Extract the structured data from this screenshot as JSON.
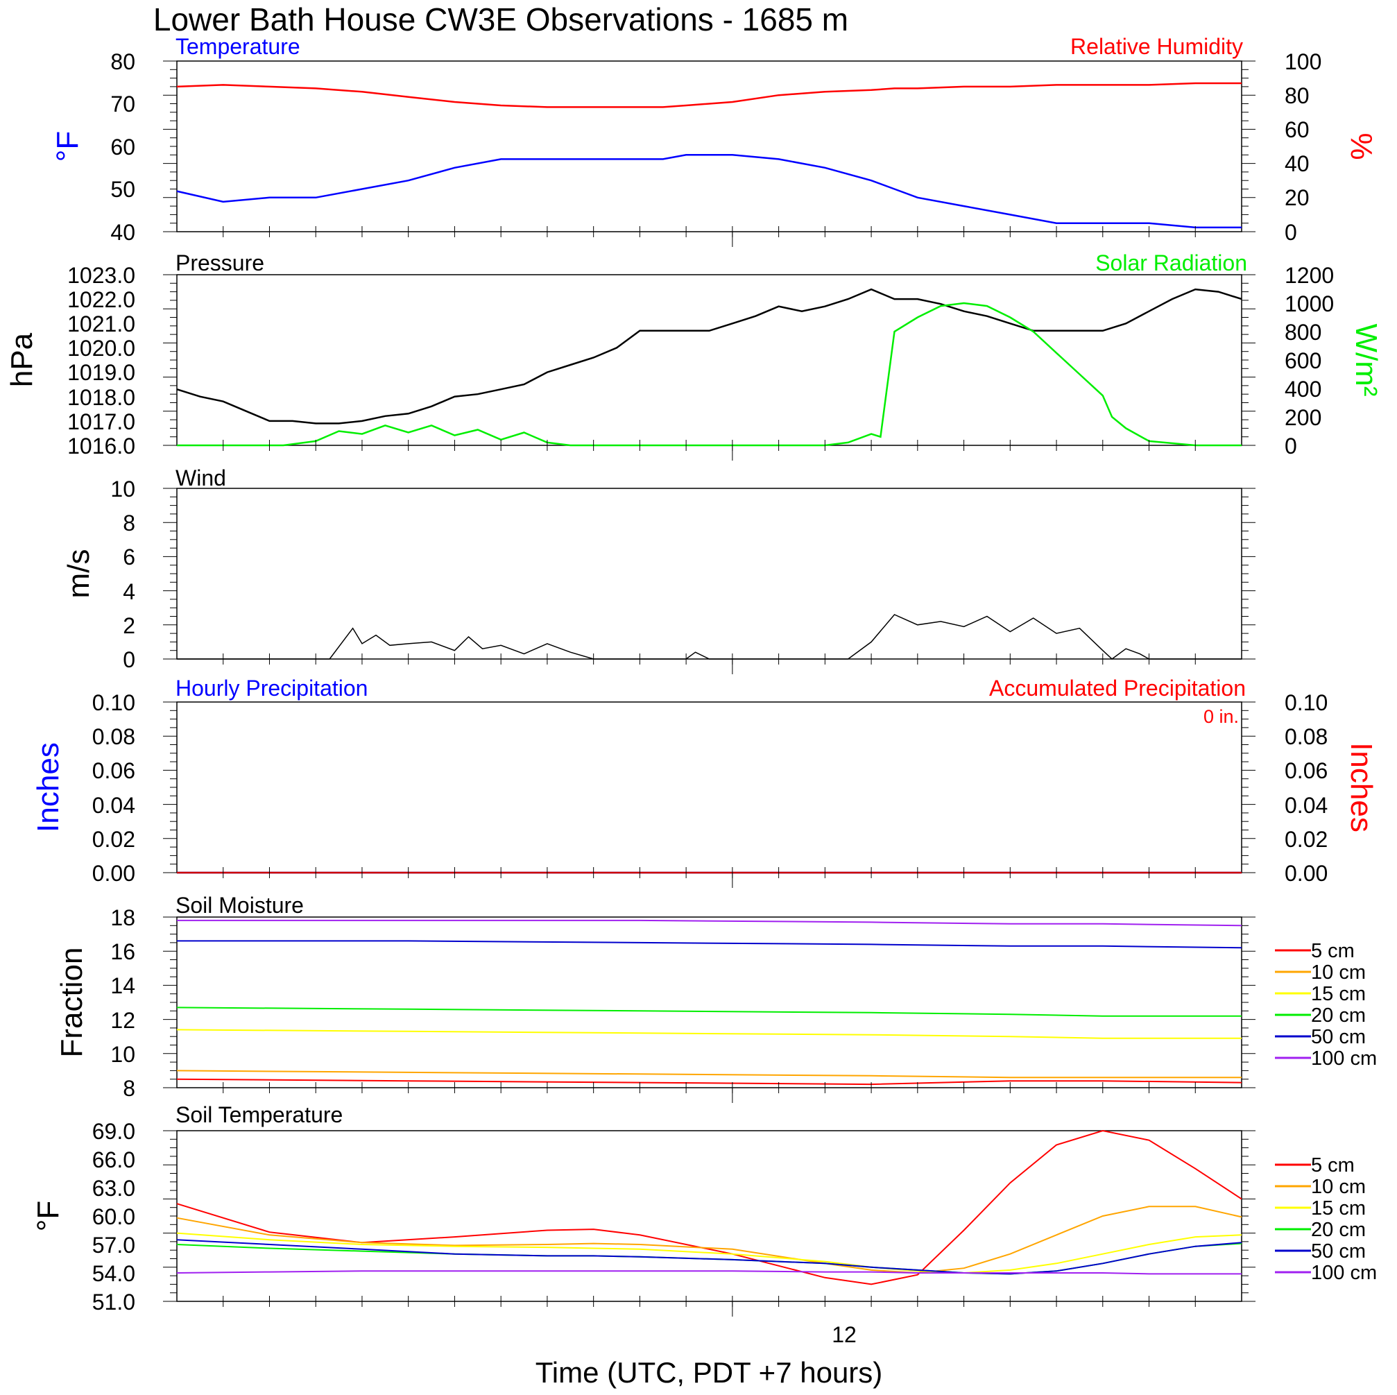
{
  "title": "Lower Bath House CW3E Observations - 1685 m",
  "xlabel": "Time (UTC, PDT +7 hours)",
  "x_tick_label": "12",
  "colors": {
    "blue": "#0000ff",
    "red": "#ff0000",
    "green": "#00ee00",
    "black": "#000000",
    "orange": "#ffa500",
    "yellow": "#ffff00",
    "darkblue": "#0000cc",
    "purple": "#a020f0"
  },
  "panels": {
    "temp_rh": {
      "left_title": "Temperature",
      "right_title": "Relative Humidity",
      "left_ylabel": "°F",
      "right_ylabel": "%",
      "left_ticks": [
        "80",
        "70",
        "60",
        "50",
        "40"
      ],
      "right_ticks": [
        "100",
        "80",
        "60",
        "40",
        "20",
        "0"
      ]
    },
    "pressure_solar": {
      "left_title": "Pressure",
      "right_title": "Solar Radiation",
      "left_ylabel": "hPa",
      "right_ylabel": "W/m²",
      "left_ticks": [
        "1023.0",
        "1022.0",
        "1021.0",
        "1020.0",
        "1019.0",
        "1018.0",
        "1017.0",
        "1016.0"
      ],
      "right_ticks": [
        "1200",
        "1000",
        "800",
        "600",
        "400",
        "200",
        "0"
      ]
    },
    "wind": {
      "left_title": "Wind",
      "left_ylabel": "m/s",
      "left_ticks": [
        "10",
        "8",
        "6",
        "4",
        "2",
        "0"
      ]
    },
    "precip": {
      "left_title": "Hourly Precipitation",
      "right_title": "Accumulated Precipitation",
      "left_ylabel": "Inches",
      "right_ylabel": "Inches",
      "annotation": "0 in.",
      "left_ticks": [
        "0.10",
        "0.08",
        "0.06",
        "0.04",
        "0.02",
        "0.00"
      ],
      "right_ticks": [
        "0.10",
        "0.08",
        "0.06",
        "0.04",
        "0.02",
        "0.00"
      ]
    },
    "soil_moisture": {
      "left_title": "Soil Moisture",
      "left_ylabel": "Fraction",
      "left_ticks": [
        "18",
        "16",
        "14",
        "12",
        "10",
        "8"
      ],
      "legend": [
        "5 cm",
        "10 cm",
        "15 cm",
        "20 cm",
        "50 cm",
        "100 cm"
      ]
    },
    "soil_temp": {
      "left_title": "Soil Temperature",
      "left_ylabel": "°F",
      "left_ticks": [
        "69.0",
        "66.0",
        "63.0",
        "60.0",
        "57.0",
        "54.0",
        "51.0"
      ],
      "legend": [
        "5 cm",
        "10 cm",
        "15 cm",
        "20 cm",
        "50 cm",
        "100 cm"
      ]
    }
  },
  "chart_data": [
    {
      "type": "line",
      "title": "Temperature / Relative Humidity",
      "x": [
        0,
        1,
        2,
        3,
        4,
        5,
        6,
        7,
        8,
        9,
        10,
        10.5,
        11,
        12,
        13,
        14,
        15,
        15.5,
        16,
        17,
        18,
        19,
        20,
        21,
        22,
        23
      ],
      "series": [
        {
          "name": "Temperature",
          "axis": "left",
          "color": "blue",
          "ylim": [
            40,
            80
          ],
          "values": [
            49.5,
            47,
            48,
            48,
            50,
            52,
            55,
            57,
            57,
            57,
            57,
            57,
            58,
            58,
            57,
            55,
            52,
            50,
            48,
            46,
            44,
            42,
            42,
            42,
            41,
            41
          ]
        },
        {
          "name": "Relative Humidity",
          "axis": "right",
          "color": "red",
          "ylim": [
            0,
            100
          ],
          "values": [
            85,
            86,
            85,
            84,
            82,
            79,
            76,
            74,
            73,
            73,
            73,
            73,
            74,
            76,
            80,
            82,
            83,
            84,
            84,
            85,
            85,
            86,
            86,
            86,
            87,
            87
          ]
        }
      ]
    },
    {
      "type": "line",
      "title": "Pressure / Solar Radiation",
      "series": [
        {
          "name": "Pressure",
          "axis": "left",
          "color": "black",
          "ylim": [
            1016,
            1023
          ],
          "x": [
            0,
            0.5,
            1,
            1.5,
            2,
            2.5,
            3,
            3.5,
            4,
            4.5,
            5,
            5.5,
            6,
            6.5,
            7,
            7.5,
            8,
            8.5,
            9,
            9.5,
            10,
            10.5,
            11,
            11.5,
            12,
            12.5,
            13,
            13.5,
            14,
            14.5,
            15,
            15.5,
            16,
            16.5,
            17,
            17.5,
            18,
            18.5,
            19,
            19.5,
            20,
            20.5,
            21,
            21.5,
            22,
            22.5,
            23
          ],
          "values": [
            1018.3,
            1018.0,
            1017.8,
            1017.4,
            1017.0,
            1017.0,
            1016.9,
            1016.9,
            1017.0,
            1017.2,
            1017.3,
            1017.6,
            1018.0,
            1018.1,
            1018.3,
            1018.5,
            1019.0,
            1019.3,
            1019.6,
            1020.0,
            1020.7,
            1020.7,
            1020.7,
            1020.7,
            1021.0,
            1021.3,
            1021.7,
            1021.5,
            1021.7,
            1022.0,
            1022.4,
            1022.0,
            1022.0,
            1021.8,
            1021.5,
            1021.3,
            1021.0,
            1020.7,
            1020.7,
            1020.7,
            1020.7,
            1021.0,
            1021.5,
            1022.0,
            1022.4,
            1022.3,
            1022.0
          ]
        },
        {
          "name": "Solar Radiation",
          "axis": "right",
          "color": "green",
          "ylim": [
            0,
            1200
          ],
          "x": [
            0,
            2.3,
            3,
            3.5,
            4,
            4.5,
            5,
            5.5,
            6,
            6.5,
            7,
            7.5,
            8,
            8.5,
            9,
            9.5,
            10,
            11,
            14,
            14.5,
            15,
            15.2,
            15.5,
            16,
            16.5,
            17,
            17.5,
            18,
            18.5,
            19,
            19.5,
            20,
            20.2,
            20.5,
            21,
            22,
            23
          ],
          "values": [
            0,
            0,
            30,
            100,
            80,
            140,
            90,
            140,
            70,
            110,
            40,
            90,
            20,
            0,
            0,
            0,
            0,
            0,
            0,
            20,
            80,
            60,
            800,
            900,
            980,
            1000,
            980,
            900,
            800,
            650,
            500,
            350,
            200,
            120,
            30,
            0,
            0
          ]
        }
      ]
    },
    {
      "type": "line",
      "title": "Wind",
      "ylim": [
        0,
        10
      ],
      "x": [
        0,
        3.3,
        3.8,
        4,
        4.3,
        4.6,
        5,
        5.5,
        6,
        6.3,
        6.6,
        7,
        7.5,
        8,
        8.5,
        9,
        9.5,
        10,
        11,
        11.2,
        11.5,
        14.5,
        15,
        15.5,
        16,
        16.5,
        17,
        17.5,
        18,
        18.5,
        19,
        19.5,
        20,
        20.2,
        20.5,
        20.8,
        21,
        23
      ],
      "series": [
        {
          "name": "Wind",
          "color": "black",
          "values": [
            0,
            0,
            1.8,
            0.9,
            1.4,
            0.8,
            0.9,
            1.0,
            0.5,
            1.3,
            0.6,
            0.8,
            0.3,
            0.9,
            0.4,
            0.0,
            0.0,
            0.0,
            0.0,
            0.4,
            0.0,
            0.0,
            1.0,
            2.6,
            2.0,
            2.2,
            1.9,
            2.5,
            1.6,
            2.4,
            1.5,
            1.8,
            0.5,
            0.0,
            0.6,
            0.3,
            0.0,
            0.0
          ]
        }
      ]
    },
    {
      "type": "line",
      "title": "Hourly Precipitation / Accumulated Precipitation",
      "x": [
        0,
        23
      ],
      "series": [
        {
          "name": "Hourly Precipitation",
          "axis": "left",
          "color": "blue",
          "ylim": [
            0,
            0.1
          ],
          "values": [
            0,
            0
          ]
        },
        {
          "name": "Accumulated Precipitation",
          "axis": "right",
          "color": "red",
          "ylim": [
            0,
            0.1
          ],
          "values": [
            0,
            0
          ]
        }
      ]
    },
    {
      "type": "line",
      "title": "Soil Moisture",
      "ylim": [
        8,
        18
      ],
      "x": [
        0,
        5,
        10,
        15,
        18,
        20,
        23
      ],
      "series": [
        {
          "name": "5 cm",
          "color": "red",
          "values": [
            8.5,
            8.4,
            8.3,
            8.2,
            8.4,
            8.4,
            8.3
          ]
        },
        {
          "name": "10 cm",
          "color": "orange",
          "values": [
            9.0,
            8.9,
            8.8,
            8.7,
            8.6,
            8.6,
            8.6
          ]
        },
        {
          "name": "15 cm",
          "color": "yellow",
          "values": [
            11.4,
            11.3,
            11.2,
            11.1,
            11.0,
            10.9,
            10.9
          ]
        },
        {
          "name": "20 cm",
          "color": "green",
          "values": [
            12.7,
            12.6,
            12.5,
            12.4,
            12.3,
            12.2,
            12.2
          ]
        },
        {
          "name": "50 cm",
          "color": "darkblue",
          "values": [
            16.6,
            16.6,
            16.5,
            16.4,
            16.3,
            16.3,
            16.2
          ]
        },
        {
          "name": "100 cm",
          "color": "purple",
          "values": [
            17.8,
            17.8,
            17.8,
            17.7,
            17.6,
            17.6,
            17.5
          ]
        }
      ]
    },
    {
      "type": "line",
      "title": "Soil Temperature",
      "ylim": [
        51,
        69
      ],
      "x": [
        0,
        2,
        4,
        6,
        8,
        9,
        10,
        12,
        14,
        15,
        16,
        17,
        18,
        19,
        20,
        21,
        22,
        23
      ],
      "series": [
        {
          "name": "5 cm",
          "color": "red",
          "values": [
            61.3,
            58.3,
            57.2,
            57.8,
            58.5,
            58.6,
            58.0,
            56.0,
            53.5,
            52.8,
            53.8,
            58.5,
            63.5,
            67.5,
            69.0,
            68.0,
            65.0,
            61.8
          ]
        },
        {
          "name": "10 cm",
          "color": "orange",
          "values": [
            59.8,
            58.0,
            57.2,
            56.9,
            57.0,
            57.1,
            57.0,
            56.5,
            55.0,
            54.3,
            54.0,
            54.5,
            56.0,
            58.0,
            60.0,
            61.0,
            61.0,
            59.9
          ]
        },
        {
          "name": "15 cm",
          "color": "yellow",
          "values": [
            58.2,
            57.5,
            57.0,
            56.8,
            56.7,
            56.6,
            56.5,
            56.0,
            55.2,
            54.6,
            54.2,
            54.0,
            54.3,
            55.0,
            56.0,
            57.0,
            57.8,
            58.0
          ]
        },
        {
          "name": "20 cm",
          "color": "green",
          "values": [
            57.0,
            56.6,
            56.3,
            56.0,
            55.8,
            55.8,
            55.7,
            55.4,
            55.0,
            54.6,
            54.3,
            54.0,
            53.9,
            54.2,
            55.0,
            56.0,
            56.8,
            57.1
          ]
        },
        {
          "name": "50 cm",
          "color": "darkblue",
          "values": [
            57.5,
            57.0,
            56.5,
            56.0,
            55.8,
            55.8,
            55.7,
            55.4,
            55.0,
            54.6,
            54.3,
            54.0,
            53.9,
            54.2,
            55.0,
            56.0,
            56.8,
            57.2
          ]
        },
        {
          "name": "100 cm",
          "color": "purple",
          "values": [
            54.0,
            54.1,
            54.2,
            54.2,
            54.2,
            54.2,
            54.2,
            54.2,
            54.1,
            54.1,
            54.0,
            54.0,
            54.0,
            54.0,
            54.0,
            53.9,
            53.9,
            53.9
          ]
        }
      ]
    }
  ]
}
